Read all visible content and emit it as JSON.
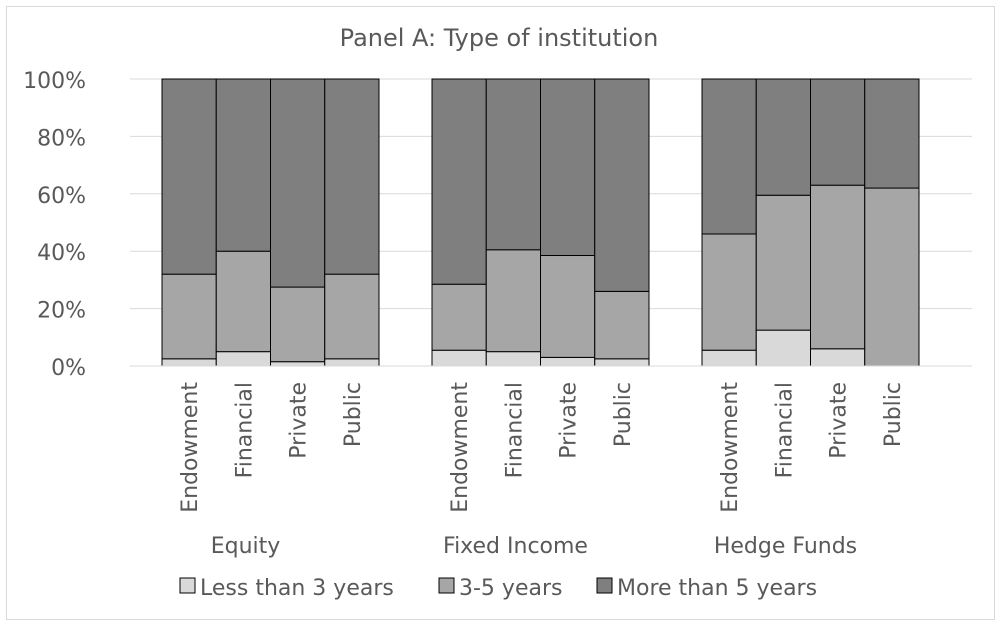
{
  "chart_data": {
    "type": "bar",
    "stacked": true,
    "title": "Panel A: Type of institution",
    "xlabel": "",
    "ylabel": "",
    "ylim": [
      0,
      100
    ],
    "yticks": [
      "0%",
      "20%",
      "40%",
      "60%",
      "80%",
      "100%"
    ],
    "grid": true,
    "legend_position": "bottom",
    "groups": [
      "Equity",
      "Fixed Income",
      "Hedge Funds"
    ],
    "categories": [
      "Endowment",
      "Financial",
      "Private",
      "Public"
    ],
    "series": [
      {
        "name": "Less than 3 years",
        "color": "#d9d9d9",
        "values": [
          [
            2.5,
            5,
            1.5,
            2.5
          ],
          [
            5.5,
            5,
            3,
            2.5
          ],
          [
            5.5,
            12.5,
            6,
            0
          ]
        ]
      },
      {
        "name": "3-5 years",
        "color": "#a6a6a6",
        "values": [
          [
            29.5,
            35,
            26,
            29.5
          ],
          [
            23,
            35.5,
            35.5,
            23.5
          ],
          [
            40.5,
            47,
            57,
            62
          ]
        ]
      },
      {
        "name": "More than 5 years",
        "color": "#7f7f7f",
        "values": [
          [
            68,
            60,
            72.5,
            68
          ],
          [
            71.5,
            59.5,
            61.5,
            74
          ],
          [
            54,
            40.5,
            37,
            38
          ]
        ]
      }
    ]
  }
}
